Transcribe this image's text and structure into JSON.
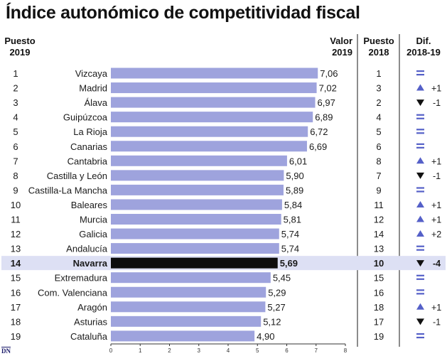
{
  "title": "Índice autonómico de competitividad fiscal",
  "headers": {
    "puesto_2019": [
      "Puesto",
      "2019"
    ],
    "valor_2019": [
      "Valor",
      "2019"
    ],
    "puesto_2018": [
      "Puesto",
      "2018"
    ],
    "dif": [
      "Dif.",
      "2018-19"
    ]
  },
  "colors": {
    "bar": "#9ea3dd",
    "highlight_bar": "#0d0d0d",
    "highlight_row": "#dde0f4",
    "equal_mark": "#5560c8",
    "up_arrow": "#5560c8",
    "down_arrow": "#111111",
    "divider": "#1a1a1a"
  },
  "highlight": "Navarra",
  "logo": "DN",
  "chart_data": {
    "type": "bar",
    "orientation": "horizontal",
    "title": "Índice autonómico de competitividad fiscal",
    "xlim": [
      0,
      8
    ],
    "x_ticks": [
      "0",
      "1",
      "2",
      "3",
      "4",
      "5",
      "6",
      "7",
      "8"
    ],
    "rows": [
      {
        "rank_2019": "1",
        "region": "Vizcaya",
        "value": 7.06,
        "value_label": "7,06",
        "rank_2018": "1",
        "dif": "=",
        "dif_label": ""
      },
      {
        "rank_2019": "2",
        "region": "Madrid",
        "value": 7.02,
        "value_label": "7,02",
        "rank_2018": "3",
        "dif": "up",
        "dif_label": "+1"
      },
      {
        "rank_2019": "3",
        "region": "Álava",
        "value": 6.97,
        "value_label": "6,97",
        "rank_2018": "2",
        "dif": "down",
        "dif_label": "-1"
      },
      {
        "rank_2019": "4",
        "region": "Guipúzcoa",
        "value": 6.89,
        "value_label": "6,89",
        "rank_2018": "4",
        "dif": "=",
        "dif_label": ""
      },
      {
        "rank_2019": "5",
        "region": "La Rioja",
        "value": 6.72,
        "value_label": "6,72",
        "rank_2018": "5",
        "dif": "=",
        "dif_label": ""
      },
      {
        "rank_2019": "6",
        "region": "Canarias",
        "value": 6.69,
        "value_label": "6,69",
        "rank_2018": "6",
        "dif": "=",
        "dif_label": ""
      },
      {
        "rank_2019": "7",
        "region": "Cantabria",
        "value": 6.01,
        "value_label": "6,01",
        "rank_2018": "8",
        "dif": "up",
        "dif_label": "+1"
      },
      {
        "rank_2019": "8",
        "region": "Castilla y León",
        "value": 5.9,
        "value_label": "5,90",
        "rank_2018": "7",
        "dif": "down",
        "dif_label": "-1"
      },
      {
        "rank_2019": "9",
        "region": "Castilla-La Mancha",
        "value": 5.89,
        "value_label": "5,89",
        "rank_2018": "9",
        "dif": "=",
        "dif_label": ""
      },
      {
        "rank_2019": "10",
        "region": "Baleares",
        "value": 5.84,
        "value_label": "5,84",
        "rank_2018": "11",
        "dif": "up",
        "dif_label": "+1"
      },
      {
        "rank_2019": "11",
        "region": "Murcia",
        "value": 5.81,
        "value_label": "5,81",
        "rank_2018": "12",
        "dif": "up",
        "dif_label": "+1"
      },
      {
        "rank_2019": "12",
        "region": "Galicia",
        "value": 5.74,
        "value_label": "5,74",
        "rank_2018": "14",
        "dif": "up",
        "dif_label": "+2"
      },
      {
        "rank_2019": "13",
        "region": "Andalucía",
        "value": 5.74,
        "value_label": "5,74",
        "rank_2018": "13",
        "dif": "=",
        "dif_label": ""
      },
      {
        "rank_2019": "14",
        "region": "Navarra",
        "value": 5.69,
        "value_label": "5,69",
        "rank_2018": "10",
        "dif": "down",
        "dif_label": "-4"
      },
      {
        "rank_2019": "15",
        "region": "Extremadura",
        "value": 5.45,
        "value_label": "5,45",
        "rank_2018": "15",
        "dif": "=",
        "dif_label": ""
      },
      {
        "rank_2019": "16",
        "region": "Com. Valenciana",
        "value": 5.29,
        "value_label": "5,29",
        "rank_2018": "16",
        "dif": "=",
        "dif_label": ""
      },
      {
        "rank_2019": "17",
        "region": "Aragón",
        "value": 5.27,
        "value_label": "5,27",
        "rank_2018": "18",
        "dif": "up",
        "dif_label": "+1"
      },
      {
        "rank_2019": "18",
        "region": "Asturias",
        "value": 5.12,
        "value_label": "5,12",
        "rank_2018": "17",
        "dif": "down",
        "dif_label": "-1"
      },
      {
        "rank_2019": "19",
        "region": "Cataluña",
        "value": 4.9,
        "value_label": "4,90",
        "rank_2018": "19",
        "dif": "=",
        "dif_label": ""
      }
    ]
  }
}
